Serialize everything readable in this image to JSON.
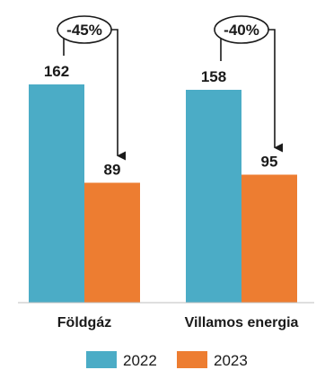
{
  "chart_data": {
    "type": "bar",
    "categories": [
      "Földgáz",
      "Villamos energia"
    ],
    "series": [
      {
        "name": "2022",
        "values": [
          162,
          158
        ],
        "color": "#4bacc6"
      },
      {
        "name": "2023",
        "values": [
          89,
          95
        ],
        "color": "#ed7d31"
      }
    ],
    "changes": [
      "-45%",
      "-40%"
    ],
    "ylim": [
      0,
      170
    ],
    "grid": false,
    "legend": "bottom",
    "title": "",
    "xlabel": "",
    "ylabel": ""
  }
}
